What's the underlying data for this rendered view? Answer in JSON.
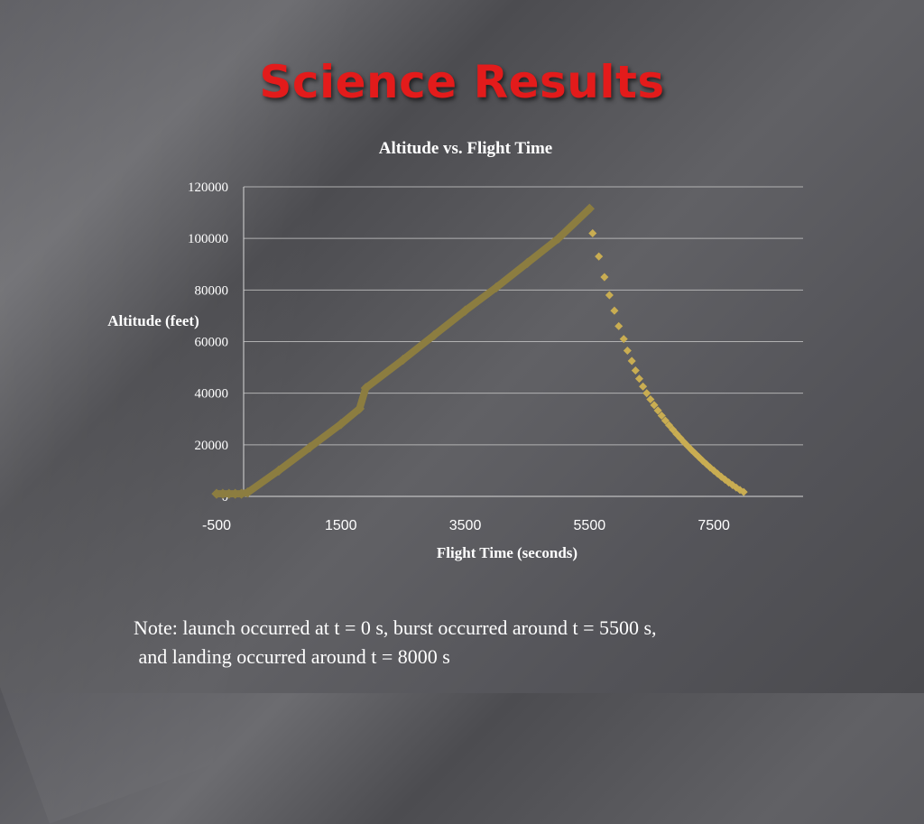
{
  "slide": {
    "title": "Science Results",
    "note_line1": "Note: launch occurred at t = 0 s, burst occurred around t = 5500 s,",
    "note_line2": " and landing occurred around t = 8000 s"
  },
  "colors": {
    "ascent": "#8c7d40",
    "descent": "#c9ad52",
    "title": "#e31b1b",
    "grid": "#c8c8c8"
  },
  "chart_data": {
    "type": "scatter",
    "title": "Altitude vs. Flight Time",
    "xlabel": "Flight Time (seconds)",
    "ylabel": "Altitude (feet)",
    "xlim": [
      -500,
      8500
    ],
    "ylim": [
      0,
      120000
    ],
    "x_ticks": [
      "-500",
      "1500",
      "3500",
      "5500",
      "7500"
    ],
    "y_ticks": [
      "0",
      "20000",
      "40000",
      "60000",
      "80000",
      "100000",
      "120000"
    ],
    "grid": true,
    "legend": "none",
    "series": [
      {
        "marker": "line-like dense points",
        "points": [
          [
            -500,
            1000
          ],
          [
            -400,
            1000
          ],
          [
            -300,
            1000
          ],
          [
            -200,
            1000
          ],
          [
            -100,
            1000
          ],
          [
            0,
            1500
          ],
          [
            500,
            10000
          ],
          [
            1000,
            19000
          ],
          [
            1500,
            28000
          ],
          [
            1800,
            34000
          ],
          [
            1900,
            42000
          ],
          [
            2500,
            53000
          ],
          [
            3000,
            62500
          ],
          [
            3500,
            72000
          ],
          [
            4000,
            81000
          ],
          [
            4500,
            90500
          ],
          [
            5000,
            100000
          ],
          [
            5500,
            111500
          ]
        ]
      },
      {
        "marker": "diamond",
        "points": [
          [
            5550,
            102000
          ],
          [
            5650,
            93000
          ],
          [
            5740,
            85000
          ],
          [
            5820,
            78000
          ],
          [
            5900,
            72000
          ],
          [
            5970,
            66000
          ],
          [
            6050,
            61000
          ],
          [
            6110,
            56500
          ],
          [
            6180,
            52500
          ],
          [
            6240,
            48800
          ],
          [
            6300,
            45600
          ],
          [
            6360,
            42600
          ],
          [
            6420,
            40000
          ],
          [
            6480,
            37600
          ],
          [
            6540,
            35400
          ],
          [
            6600,
            33300
          ],
          [
            6660,
            31300
          ],
          [
            6720,
            29400
          ],
          [
            6780,
            27600
          ],
          [
            6840,
            25900
          ],
          [
            6900,
            24200
          ],
          [
            6960,
            22600
          ],
          [
            7020,
            21000
          ],
          [
            7080,
            19500
          ],
          [
            7140,
            18000
          ],
          [
            7200,
            16600
          ],
          [
            7260,
            15200
          ],
          [
            7320,
            13800
          ],
          [
            7380,
            12500
          ],
          [
            7440,
            11200
          ],
          [
            7500,
            10000
          ],
          [
            7560,
            8800
          ],
          [
            7620,
            7600
          ],
          [
            7680,
            6500
          ],
          [
            7740,
            5400
          ],
          [
            7800,
            4400
          ],
          [
            7860,
            3400
          ],
          [
            7920,
            2500
          ],
          [
            7980,
            1700
          ]
        ]
      }
    ]
  }
}
